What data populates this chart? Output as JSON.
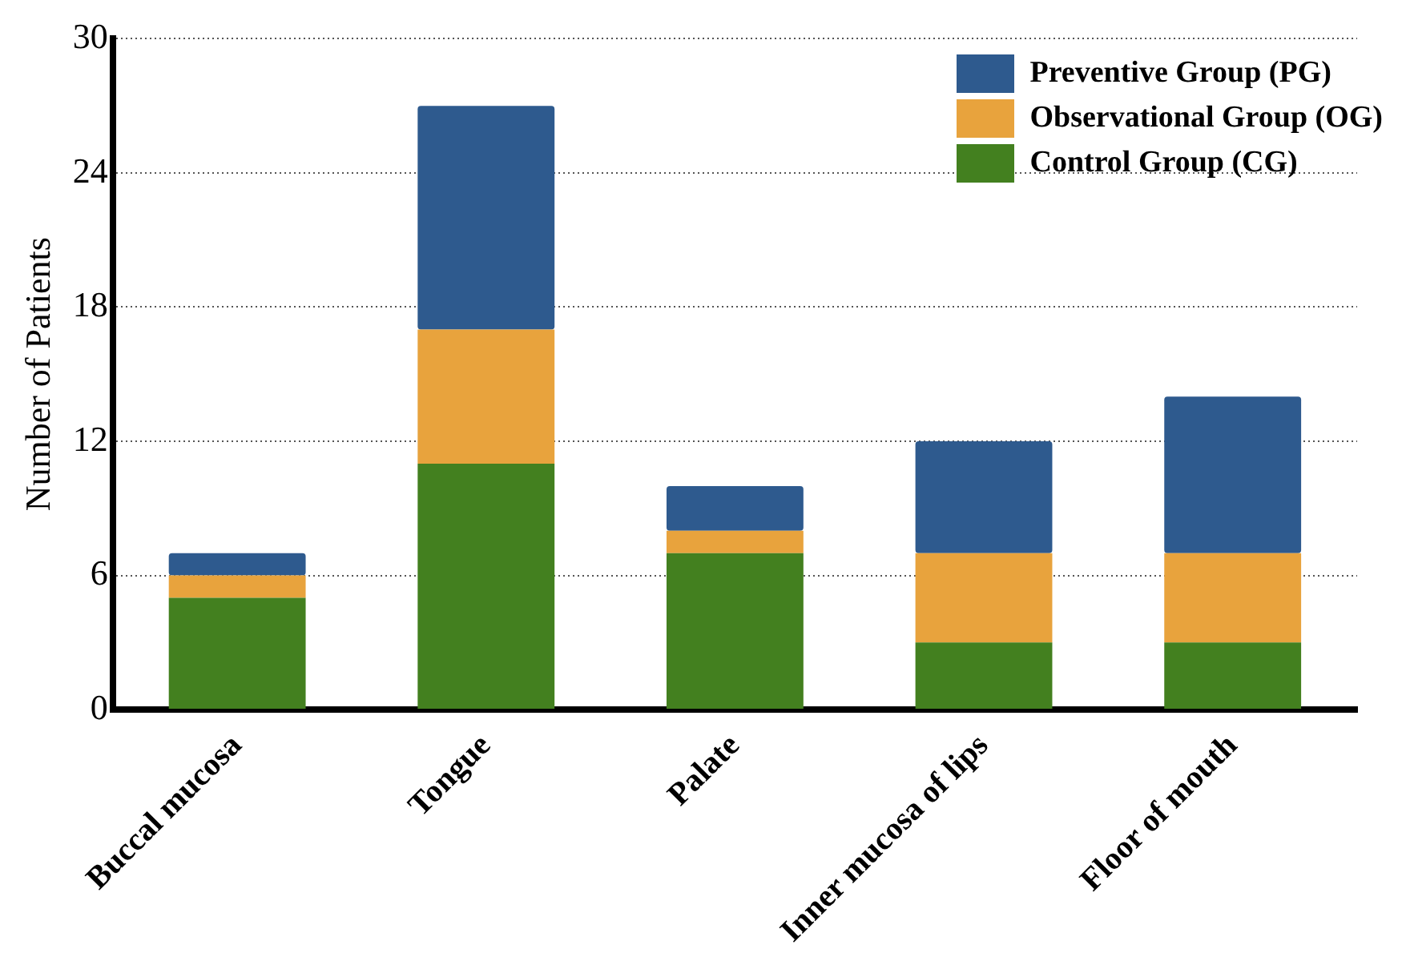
{
  "chart_data": {
    "type": "bar",
    "ylabel": "Number of Patients",
    "categories": [
      "Buccal mucosa",
      "Tongue",
      "Palate",
      "Inner mucosa of lips",
      "Floor of mouth"
    ],
    "stacked": true,
    "series": [
      {
        "name": "Control Group (CG)",
        "color": "#43801f",
        "values": [
          5,
          11,
          7,
          3,
          3
        ]
      },
      {
        "name": "Observational Group (OG)",
        "color": "#e8a33d",
        "values": [
          1,
          6,
          1,
          4,
          4
        ]
      },
      {
        "name": "Preventive Group (PG)",
        "color": "#2e5a8e",
        "values": [
          1,
          10,
          2,
          5,
          7
        ]
      }
    ],
    "ylim": [
      0,
      30
    ],
    "yticks": [
      0,
      6,
      12,
      18,
      24,
      30
    ],
    "grid": "y",
    "legend": "top right"
  }
}
